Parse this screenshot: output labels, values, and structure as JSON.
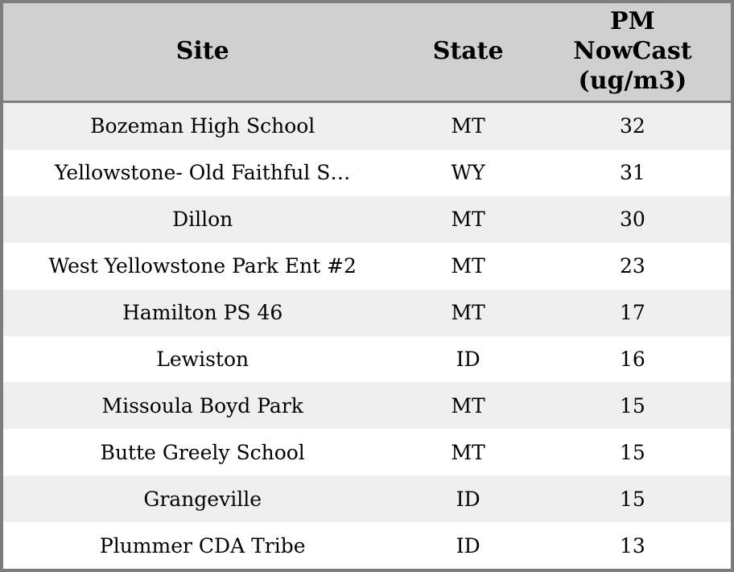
{
  "table": {
    "columns": [
      {
        "key": "site",
        "label": "Site"
      },
      {
        "key": "state",
        "label": "State"
      },
      {
        "key": "pm",
        "label": "PM NowCast (ug/m3)"
      }
    ],
    "rows": [
      {
        "site": "Bozeman High School",
        "state": "MT",
        "pm": "32"
      },
      {
        "site": "Yellowstone- Old Faithful S…",
        "state": "WY",
        "pm": "31"
      },
      {
        "site": "Dillon",
        "state": "MT",
        "pm": "30"
      },
      {
        "site": "West Yellowstone Park Ent #2",
        "state": "MT",
        "pm": "23"
      },
      {
        "site": "Hamilton PS 46",
        "state": "MT",
        "pm": "17"
      },
      {
        "site": "Lewiston",
        "state": "ID",
        "pm": "16"
      },
      {
        "site": "Missoula Boyd Park",
        "state": "MT",
        "pm": "15"
      },
      {
        "site": "Butte Greely School",
        "state": "MT",
        "pm": "15"
      },
      {
        "site": "Grangeville",
        "state": "ID",
        "pm": "15"
      },
      {
        "site": "Plummer CDA Tribe",
        "state": "ID",
        "pm": "13"
      }
    ]
  },
  "colors": {
    "outer_border": "#7d7d7d",
    "header_background": "#d0d0d0",
    "header_separator": "#7d7d7d",
    "row_stripe": "#efefef",
    "row_plain": "#ffffff",
    "text": "#000000"
  }
}
